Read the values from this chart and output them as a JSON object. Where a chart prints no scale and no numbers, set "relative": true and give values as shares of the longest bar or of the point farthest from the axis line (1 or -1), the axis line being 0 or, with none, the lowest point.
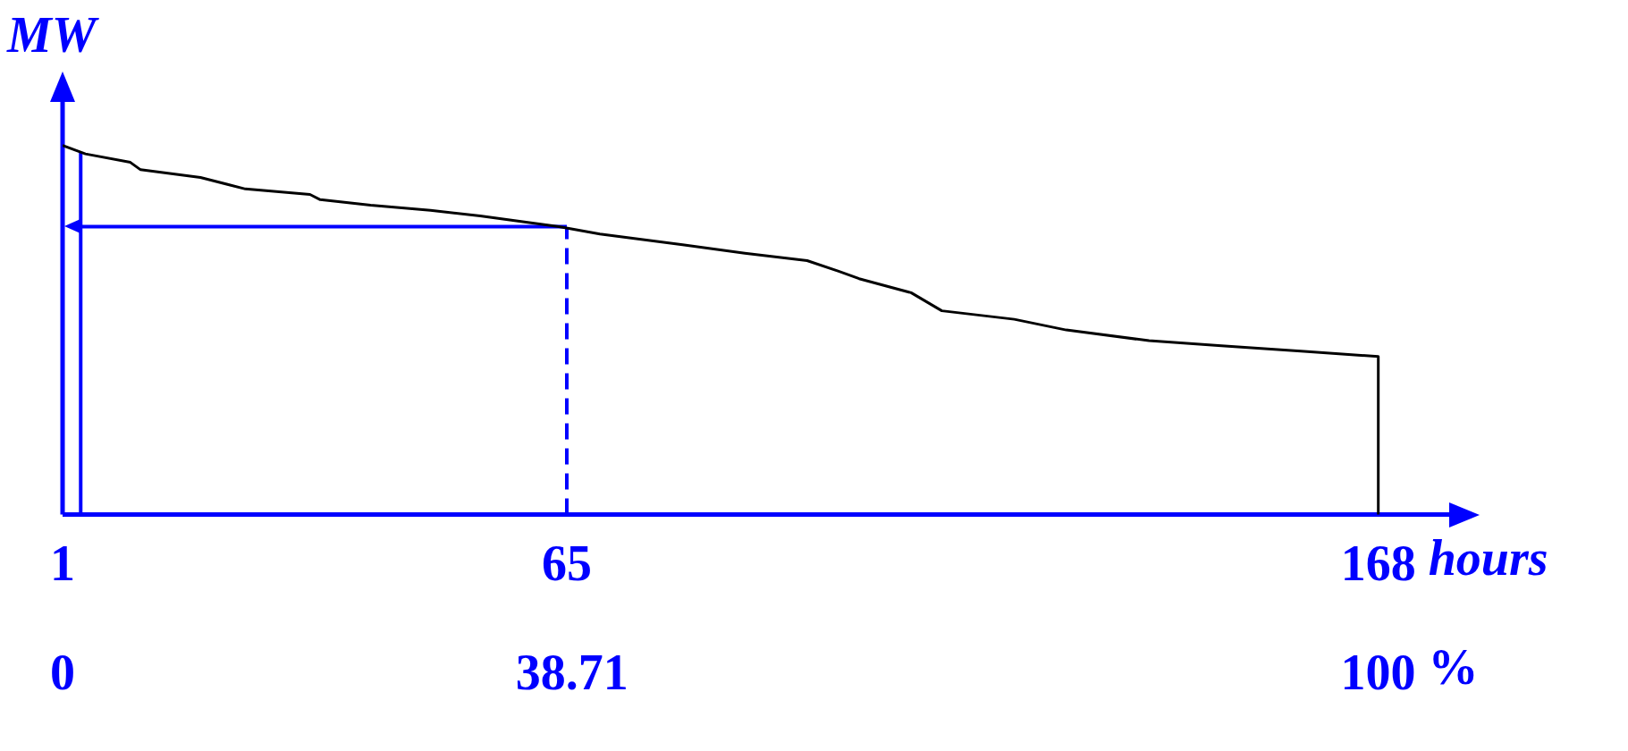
{
  "chart_data": {
    "type": "line",
    "xlabel": "hours",
    "ylabel": "MW",
    "x2label": "%",
    "relative": true,
    "grid": false,
    "legend": false,
    "x": [
      1,
      3.9,
      9.6,
      10.9,
      18.5,
      24.2,
      32.4,
      33.7,
      40.1,
      47.7,
      54,
      64,
      69.2,
      79.7,
      87.6,
      95.5,
      99.5,
      102.1,
      108.7,
      112.6,
      121.8,
      128.4,
      138.9,
      148.1,
      158.6,
      168,
      168
    ],
    "series": [
      {
        "color": "#000000",
        "values": [
          1,
          0.977,
          0.954,
          0.934,
          0.913,
          0.882,
          0.867,
          0.853,
          0.838,
          0.824,
          0.809,
          0.78,
          0.76,
          0.731,
          0.708,
          0.688,
          0.659,
          0.639,
          0.601,
          0.552,
          0.529,
          0.5,
          0.471,
          0.457,
          0.442,
          0.428,
          0
        ]
      }
    ],
    "xlim": [
      1,
      177
    ],
    "xticks": [
      1,
      65,
      168
    ],
    "x2lim": [
      0,
      105.4
    ],
    "x2ticks": [
      0,
      38.71,
      100
    ],
    "ref_lines": [
      {
        "axis": "x",
        "value": 65,
        "color": "#0000ff",
        "line_style": "dashed"
      },
      {
        "axis": "x",
        "value": 3.3,
        "color": "#0000ff",
        "line_style": "solid"
      },
      {
        "axis": "y",
        "value": 0.78,
        "color": "#0000ff",
        "line_style": "solid"
      }
    ]
  }
}
